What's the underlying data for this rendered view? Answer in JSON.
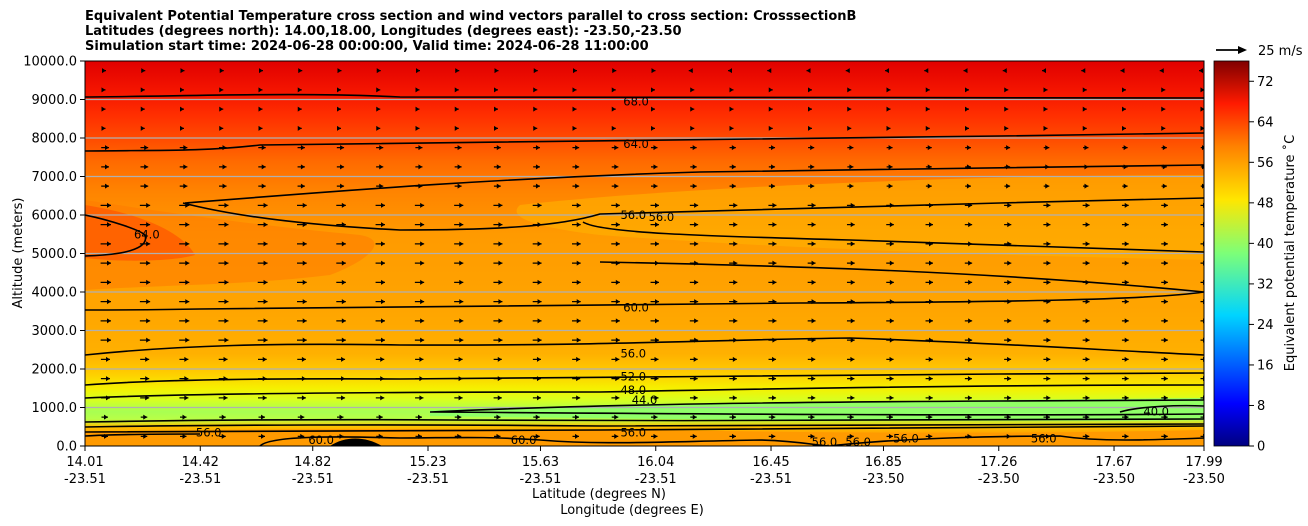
{
  "title": {
    "line1": "Equivalent Potential Temperature cross section and wind vectors parallel to cross section: CrosssectionB",
    "line2": "Latitudes (degrees north): 14.00,18.00, Longitudes (degrees east): -23.50,-23.50",
    "line3": "Simulation start time: 2024-06-28 00:00:00, Valid time: 2024-06-28 11:00:00"
  },
  "chart_data": {
    "type": "heatmap",
    "ylabel": "Altitude (meters)",
    "xlabel_lat": "Latitude (degrees N)",
    "xlabel_lon": "Longitude (degrees E)",
    "ylim": [
      0,
      10000
    ],
    "y_ticks": [
      "0.0",
      "1000.0",
      "2000.0",
      "3000.0",
      "4000.0",
      "5000.0",
      "6000.0",
      "7000.0",
      "8000.0",
      "9000.0",
      "10000.0"
    ],
    "x_ticks": [
      {
        "lat": "14.01",
        "lon": "-23.51"
      },
      {
        "lat": "14.42",
        "lon": "-23.51"
      },
      {
        "lat": "14.82",
        "lon": "-23.51"
      },
      {
        "lat": "15.23",
        "lon": "-23.51"
      },
      {
        "lat": "15.63",
        "lon": "-23.51"
      },
      {
        "lat": "16.04",
        "lon": "-23.51"
      },
      {
        "lat": "16.45",
        "lon": "-23.51"
      },
      {
        "lat": "16.85",
        "lon": "-23.50"
      },
      {
        "lat": "17.26",
        "lon": "-23.50"
      },
      {
        "lat": "17.67",
        "lon": "-23.50"
      },
      {
        "lat": "17.99",
        "lon": "-23.50"
      }
    ],
    "xlim": [
      14.01,
      17.99
    ],
    "colorbar": {
      "label": "Equivalent potential temperature ˚C",
      "min": 0,
      "max": 76,
      "ticks": [
        "0",
        "8",
        "16",
        "24",
        "32",
        "40",
        "48",
        "56",
        "64",
        "72"
      ]
    },
    "quiver_key": "25 m/s",
    "contour_labels": [
      {
        "text": "68.0",
        "lat": 15.97,
        "alt": 8950
      },
      {
        "text": "64.0",
        "lat": 15.97,
        "alt": 7850
      },
      {
        "text": "56.0",
        "lat": 15.96,
        "alt": 6000
      },
      {
        "text": "56.0",
        "lat": 16.06,
        "alt": 5950
      },
      {
        "text": "64.0",
        "lat": 14.23,
        "alt": 5500
      },
      {
        "text": "60.0",
        "lat": 15.97,
        "alt": 3600
      },
      {
        "text": "56.0",
        "lat": 15.96,
        "alt": 2400
      },
      {
        "text": "52.0",
        "lat": 15.96,
        "alt": 1800
      },
      {
        "text": "48.0",
        "lat": 15.96,
        "alt": 1450
      },
      {
        "text": "44.0",
        "lat": 16.0,
        "alt": 1200
      },
      {
        "text": "56.0",
        "lat": 15.96,
        "alt": 350
      },
      {
        "text": "56.0",
        "lat": 14.45,
        "alt": 350
      },
      {
        "text": "60.0",
        "lat": 14.85,
        "alt": 150
      },
      {
        "text": "60.0",
        "lat": 15.57,
        "alt": 150
      },
      {
        "text": "56.0",
        "lat": 16.64,
        "alt": 100
      },
      {
        "text": "56.0",
        "lat": 16.76,
        "alt": 100
      },
      {
        "text": "56.0",
        "lat": 16.93,
        "alt": 200
      },
      {
        "text": "56.0",
        "lat": 17.42,
        "alt": 200
      },
      {
        "text": "40.0",
        "lat": 17.82,
        "alt": 900
      }
    ],
    "colors": {
      "bands": [
        "#f14d00",
        "#ff6f00",
        "#ff8c00",
        "#ffaa00",
        "#ffc800",
        "#f5ec00",
        "#d8ff1f",
        "#a4ff53",
        "#8cff6b",
        "#ff9a00",
        "#f25100",
        "#000000"
      ]
    }
  }
}
